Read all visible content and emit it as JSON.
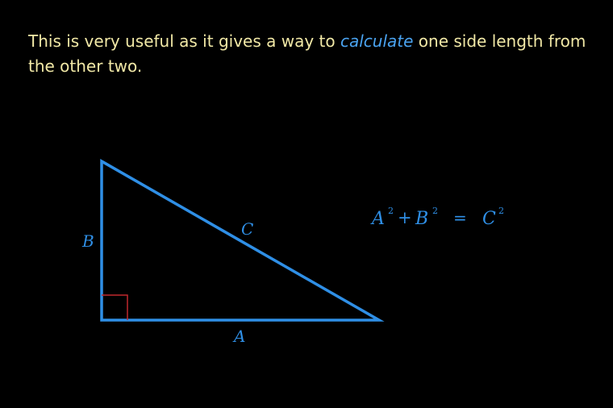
{
  "text": {
    "before": "This is very useful as it gives a way to ",
    "highlight": "calculate",
    "after": " one side length from the other two."
  },
  "diagram": {
    "labels": {
      "a": "A",
      "b": "B",
      "c": "C"
    },
    "equation": {
      "term1": "A",
      "exp1": "2",
      "plus": "+",
      "term2": "B",
      "exp2": "2",
      "equals": "=",
      "term3": "C",
      "exp3": "2"
    },
    "colors": {
      "background": "#000000",
      "text": "#f1e8a6",
      "accent": "#2f8fe6",
      "right_angle_marker": "#c0282d"
    }
  }
}
